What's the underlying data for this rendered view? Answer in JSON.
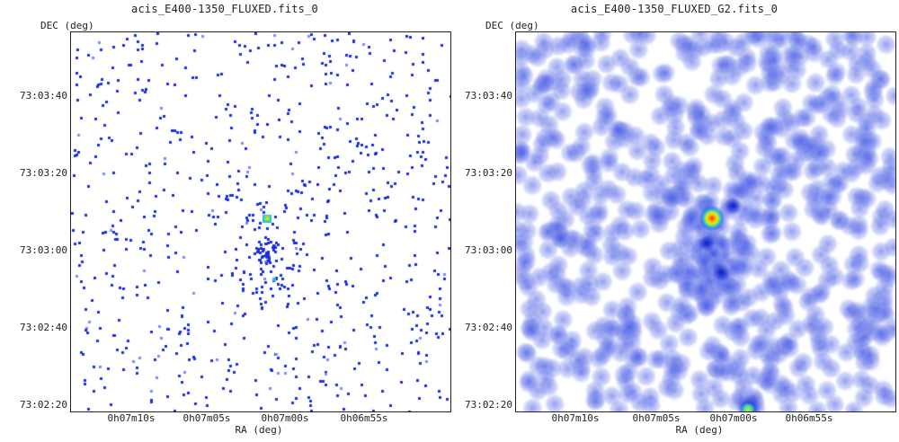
{
  "panels": [
    {
      "title": "acis_E400-1350_FLUXED.fits_0",
      "y_axis_label": "DEC (deg)",
      "x_axis_label": "RA (deg)",
      "y_ticks": [
        "73:03:40",
        "73:03:20",
        "73:03:00",
        "73:02:40",
        "73:02:20"
      ],
      "x_ticks": [
        "0h07m10s",
        "0h07m05s",
        "0h07m00s",
        "0h06m55s"
      ]
    },
    {
      "title": "acis_E400-1350_FLUXED_G2.fits_0",
      "y_axis_label": "DEC (deg)",
      "x_axis_label": "RA (deg)",
      "y_ticks": [
        "73:03:40",
        "73:03:20",
        "73:03:00",
        "73:02:40",
        "73:02:20"
      ],
      "x_ticks": [
        "0h07m10s",
        "0h07m05s",
        "0h07m00s",
        "0h06m55s"
      ]
    }
  ],
  "colors": {
    "low": "#1a2fe0",
    "mid": "#22c0e0",
    "high": "#ff2000",
    "peak": "#ffe000"
  }
}
